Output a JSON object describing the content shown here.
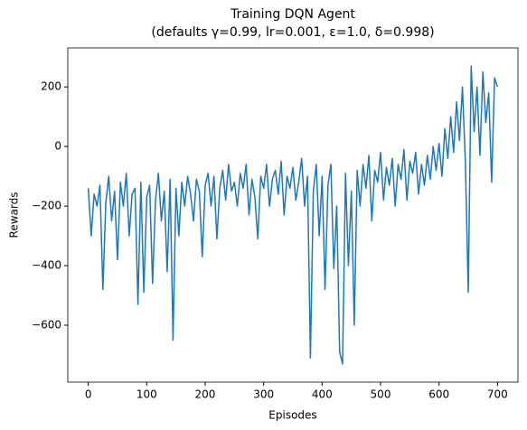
{
  "chart_data": {
    "type": "line",
    "title": "Training DQN Agent",
    "subtitle": "(defaults γ=0.99, lr=0.001, ε=1.0, δ=0.998)",
    "xlabel": "Episodes",
    "ylabel": "Rewards",
    "color": "#1f77b4",
    "x": [
      0,
      5,
      10,
      15,
      20,
      25,
      30,
      35,
      40,
      45,
      50,
      55,
      60,
      65,
      70,
      75,
      80,
      85,
      90,
      95,
      100,
      105,
      110,
      115,
      120,
      125,
      130,
      135,
      140,
      145,
      150,
      155,
      160,
      165,
      170,
      175,
      180,
      185,
      190,
      195,
      200,
      205,
      210,
      215,
      220,
      225,
      230,
      235,
      240,
      245,
      250,
      255,
      260,
      265,
      270,
      275,
      280,
      285,
      290,
      295,
      300,
      305,
      310,
      315,
      320,
      325,
      330,
      335,
      340,
      345,
      350,
      355,
      360,
      365,
      370,
      375,
      380,
      385,
      390,
      395,
      400,
      405,
      410,
      415,
      420,
      425,
      430,
      435,
      440,
      445,
      450,
      455,
      460,
      465,
      470,
      475,
      480,
      485,
      490,
      495,
      500,
      505,
      510,
      515,
      520,
      525,
      530,
      535,
      540,
      545,
      550,
      555,
      560,
      565,
      570,
      575,
      580,
      585,
      590,
      595,
      600,
      605,
      610,
      615,
      620,
      625,
      630,
      635,
      640,
      645,
      650,
      655,
      660,
      665,
      670,
      675,
      680,
      685,
      690,
      695,
      700
    ],
    "values": [
      -140,
      -300,
      -160,
      -200,
      -130,
      -480,
      -190,
      -100,
      -250,
      -150,
      -380,
      -120,
      -200,
      -90,
      -300,
      -160,
      -140,
      -530,
      -120,
      -490,
      -170,
      -130,
      -460,
      -180,
      -90,
      -250,
      -150,
      -420,
      -110,
      -650,
      -140,
      -300,
      -120,
      -200,
      -100,
      -160,
      -250,
      -110,
      -150,
      -370,
      -130,
      -90,
      -200,
      -100,
      -310,
      -140,
      -80,
      -180,
      -60,
      -150,
      -120,
      -200,
      -90,
      -140,
      -60,
      -230,
      -110,
      -170,
      -310,
      -100,
      -140,
      -60,
      -200,
      -110,
      -80,
      -160,
      -50,
      -230,
      -100,
      -140,
      -70,
      -180,
      -120,
      -40,
      -200,
      -100,
      -710,
      -150,
      -60,
      -300,
      -100,
      -480,
      -130,
      -60,
      -410,
      -200,
      -690,
      -730,
      -90,
      -400,
      -150,
      -600,
      -80,
      -200,
      -60,
      -140,
      -30,
      -250,
      -80,
      -120,
      -20,
      -180,
      -70,
      -130,
      -40,
      -200,
      -60,
      -110,
      -10,
      -180,
      -50,
      -90,
      -20,
      -160,
      -60,
      -130,
      -30,
      -110,
      0,
      -80,
      10,
      -100,
      60,
      -40,
      100,
      -20,
      150,
      20,
      200,
      -50,
      -490,
      270,
      50,
      200,
      -30,
      250,
      80,
      180,
      -120,
      230,
      200
    ],
    "xlim": [
      -35,
      735
    ],
    "xticks": [
      0,
      100,
      200,
      300,
      400,
      500,
      600,
      700
    ],
    "ylim": [
      -791,
      331
    ],
    "yticks": [
      {
        "value": -600,
        "label": "−600"
      },
      {
        "value": -400,
        "label": "−400"
      },
      {
        "value": -200,
        "label": "−200"
      },
      0,
      200
    ]
  }
}
